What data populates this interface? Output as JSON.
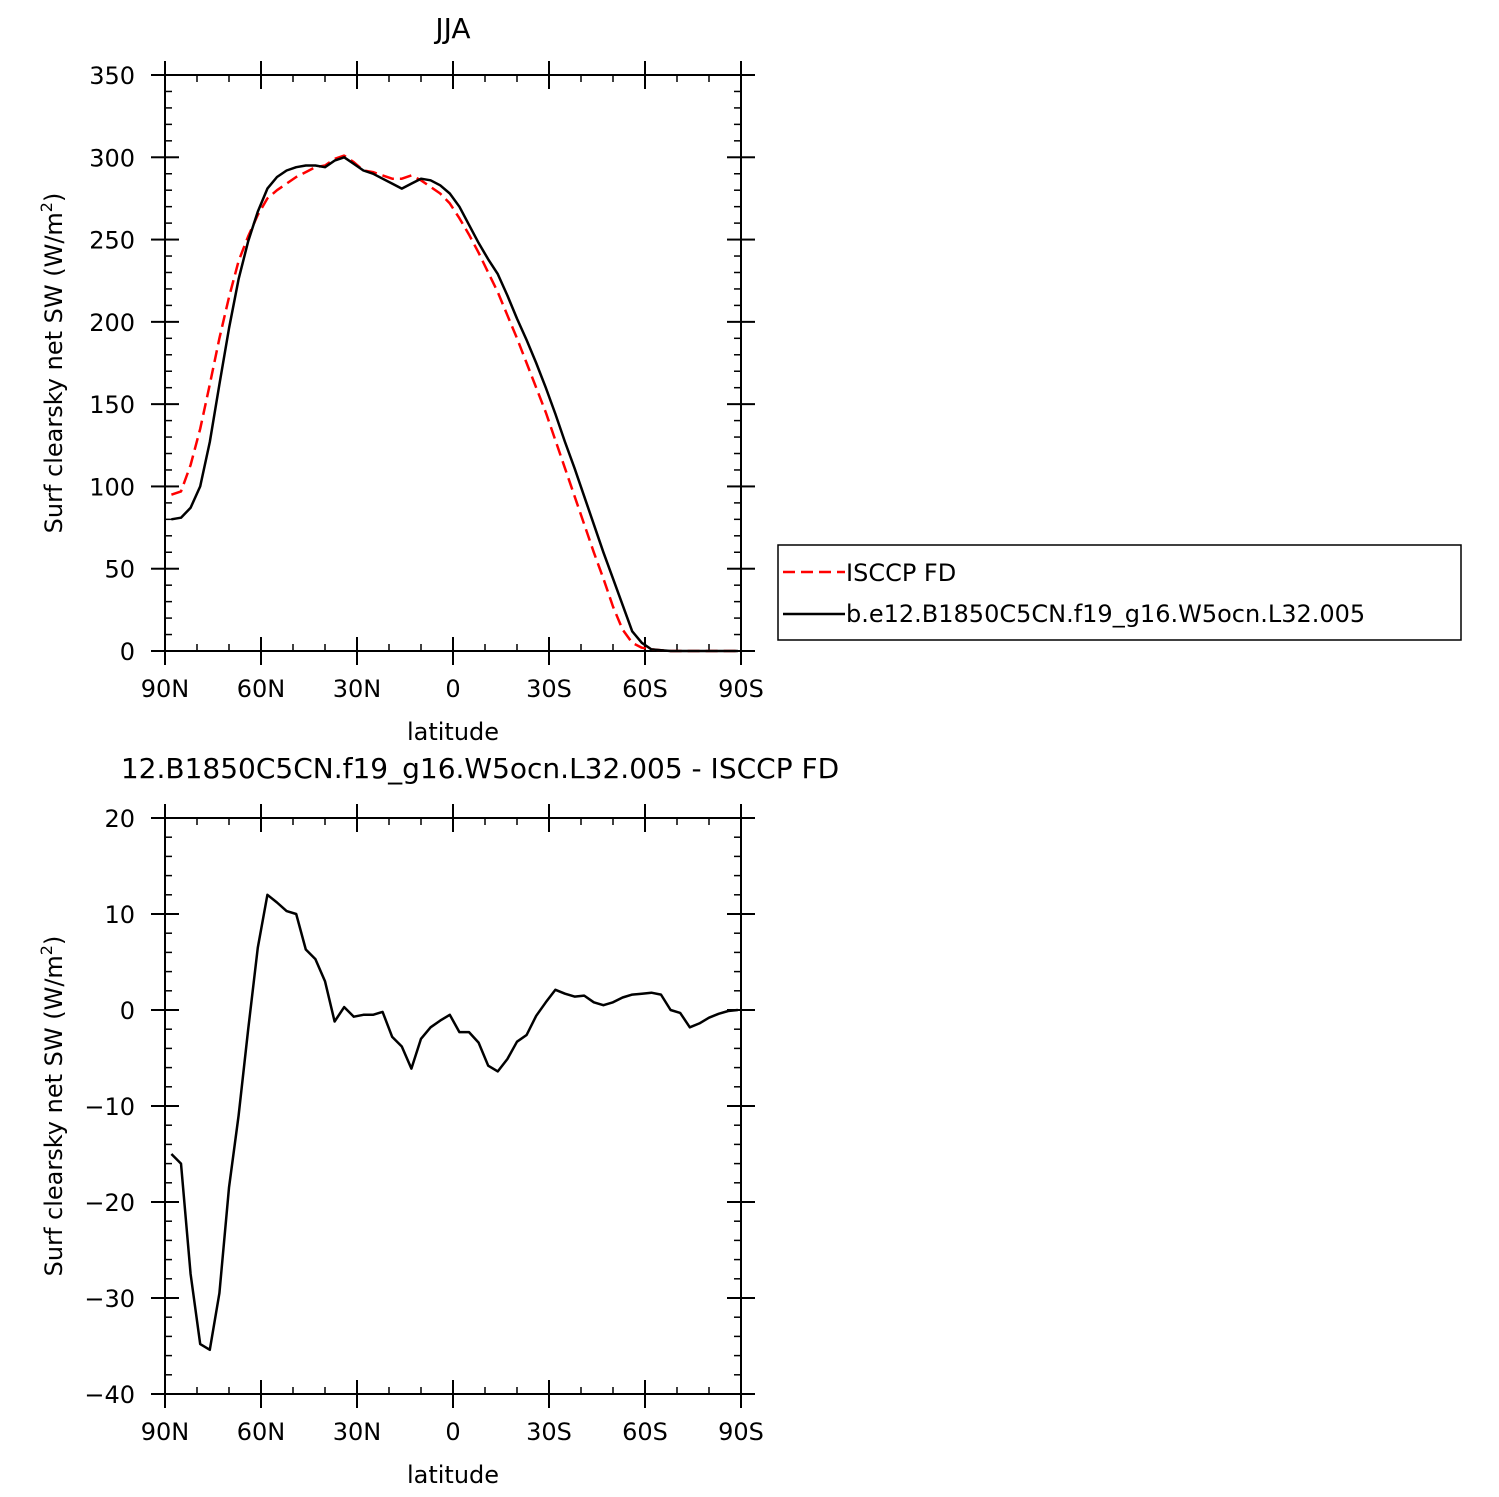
{
  "chart_data": [
    {
      "type": "line",
      "title": "JJA",
      "xlabel": "latitude",
      "ylabel": "Surf clearsky net SW (W/m",
      "ylabel_sup": "2",
      "ylabel_close": ")",
      "xlim": [
        90,
        -90
      ],
      "ylim": [
        0,
        350
      ],
      "x_ticks": [
        {
          "value": 90,
          "label": "90N"
        },
        {
          "value": 60,
          "label": "60N"
        },
        {
          "value": 30,
          "label": "30N"
        },
        {
          "value": 0,
          "label": "0"
        },
        {
          "value": -30,
          "label": "30S"
        },
        {
          "value": -60,
          "label": "60S"
        },
        {
          "value": -90,
          "label": "90S"
        }
      ],
      "y_ticks": [
        0,
        50,
        100,
        150,
        200,
        250,
        300,
        350
      ],
      "legend": {
        "placement": "right"
      },
      "series": [
        {
          "name": "ISCCP FD",
          "color": "#ff0000",
          "style": "dashed",
          "x": [
            88,
            85,
            82,
            79,
            76,
            73,
            70,
            67,
            64,
            61,
            58,
            55,
            52,
            49,
            46,
            43,
            40,
            37,
            34,
            31,
            28,
            25,
            22,
            19,
            16,
            13,
            10,
            7,
            4,
            1,
            -2,
            -5,
            -8,
            -11,
            -14,
            -17,
            -20,
            -23,
            -26,
            -29,
            -32,
            -35,
            -38,
            -41,
            -44,
            -47,
            -50,
            -53,
            -56,
            -59,
            -62,
            -65,
            -68,
            -71,
            -74,
            -77,
            -80,
            -83,
            -86,
            -89
          ],
          "y": [
            95,
            97,
            113,
            135,
            162,
            190,
            215,
            237,
            252,
            265,
            275,
            280,
            284,
            288,
            291,
            294,
            295,
            299,
            301,
            297,
            292,
            291,
            289,
            287,
            287,
            289,
            286,
            282,
            278,
            272,
            263,
            253,
            242,
            230,
            218,
            204,
            190,
            175,
            160,
            145,
            128,
            111,
            94,
            77,
            60,
            44,
            27,
            13,
            5,
            2,
            1,
            0.5,
            0,
            0,
            0,
            0,
            0,
            0,
            0,
            0
          ]
        },
        {
          "name": "b.e12.B1850C5CN.f19_g16.W5ocn.L32.005",
          "color": "#000000",
          "style": "solid",
          "x": [
            88,
            85,
            82,
            79,
            76,
            73,
            70,
            67,
            64,
            61,
            58,
            55,
            52,
            49,
            46,
            43,
            40,
            37,
            34,
            31,
            28,
            25,
            22,
            19,
            16,
            13,
            10,
            7,
            4,
            1,
            -2,
            -5,
            -8,
            -11,
            -14,
            -17,
            -20,
            -23,
            -26,
            -29,
            -32,
            -35,
            -38,
            -41,
            -44,
            -47,
            -50,
            -53,
            -56,
            -59,
            -62,
            -65,
            -68,
            -71,
            -74,
            -77,
            -80,
            -83,
            -86,
            -89
          ],
          "y": [
            80,
            81,
            87,
            100,
            127,
            162,
            196,
            226,
            249,
            267,
            281,
            288,
            292,
            294,
            295,
            295,
            294,
            298,
            300,
            296,
            292,
            290,
            287,
            284,
            281,
            284,
            287,
            286,
            283,
            278,
            270,
            259,
            248,
            238,
            229,
            216,
            202,
            189,
            175,
            160,
            144,
            127,
            111,
            94,
            77,
            60,
            44,
            28,
            12,
            5,
            1,
            0.5,
            0,
            0,
            0,
            0,
            0,
            0,
            0,
            0
          ]
        }
      ]
    },
    {
      "type": "line",
      "title": "12.B1850C5CN.f19_g16.W5ocn.L32.005 - ISCCP FD",
      "xlabel": "latitude",
      "ylabel": "Surf clearsky net SW (W/m",
      "ylabel_sup": "2",
      "ylabel_close": ")",
      "xlim": [
        90,
        -90
      ],
      "ylim": [
        -40,
        20
      ],
      "x_ticks": [
        {
          "value": 90,
          "label": "90N"
        },
        {
          "value": 60,
          "label": "60N"
        },
        {
          "value": 30,
          "label": "30N"
        },
        {
          "value": 0,
          "label": "0"
        },
        {
          "value": -30,
          "label": "30S"
        },
        {
          "value": -60,
          "label": "60S"
        },
        {
          "value": -90,
          "label": "90S"
        }
      ],
      "y_ticks": [
        -40,
        -30,
        -20,
        -10,
        0,
        10,
        20
      ],
      "series": [
        {
          "color": "#000000",
          "style": "solid",
          "x": [
            88,
            85,
            82,
            79,
            76,
            73,
            70,
            67,
            64,
            61,
            58,
            55,
            52,
            49,
            46,
            43,
            40,
            37,
            34,
            31,
            28,
            25,
            22,
            19,
            16,
            13,
            10,
            7,
            4,
            1,
            -2,
            -5,
            -8,
            -11,
            -14,
            -17,
            -20,
            -23,
            -26,
            -29,
            -32,
            -35,
            -38,
            -41,
            -44,
            -47,
            -50,
            -53,
            -56,
            -59,
            -62,
            -65,
            -68,
            -71,
            -74,
            -77,
            -80,
            -83,
            -86,
            -89
          ],
          "y": [
            -15,
            -16,
            -27.5,
            -34.8,
            -35.4,
            -29.5,
            -18.5,
            -11,
            -2,
            6.5,
            12,
            11.2,
            10.3,
            10,
            6.3,
            5.3,
            3,
            -1.2,
            0.3,
            -0.7,
            -0.5,
            -0.5,
            -0.2,
            -2.8,
            -3.8,
            -6.1,
            -3,
            -1.8,
            -1.1,
            -0.5,
            -2.3,
            -2.3,
            -3.4,
            -5.8,
            -6.4,
            -5.1,
            -3.3,
            -2.6,
            -0.6,
            0.8,
            2.1,
            1.7,
            1.4,
            1.5,
            0.8,
            0.5,
            0.8,
            1.3,
            1.6,
            1.7,
            1.8,
            1.6,
            0,
            -0.3,
            -1.8,
            -1.4,
            -0.8,
            -0.4,
            -0.1,
            0
          ]
        }
      ]
    }
  ]
}
